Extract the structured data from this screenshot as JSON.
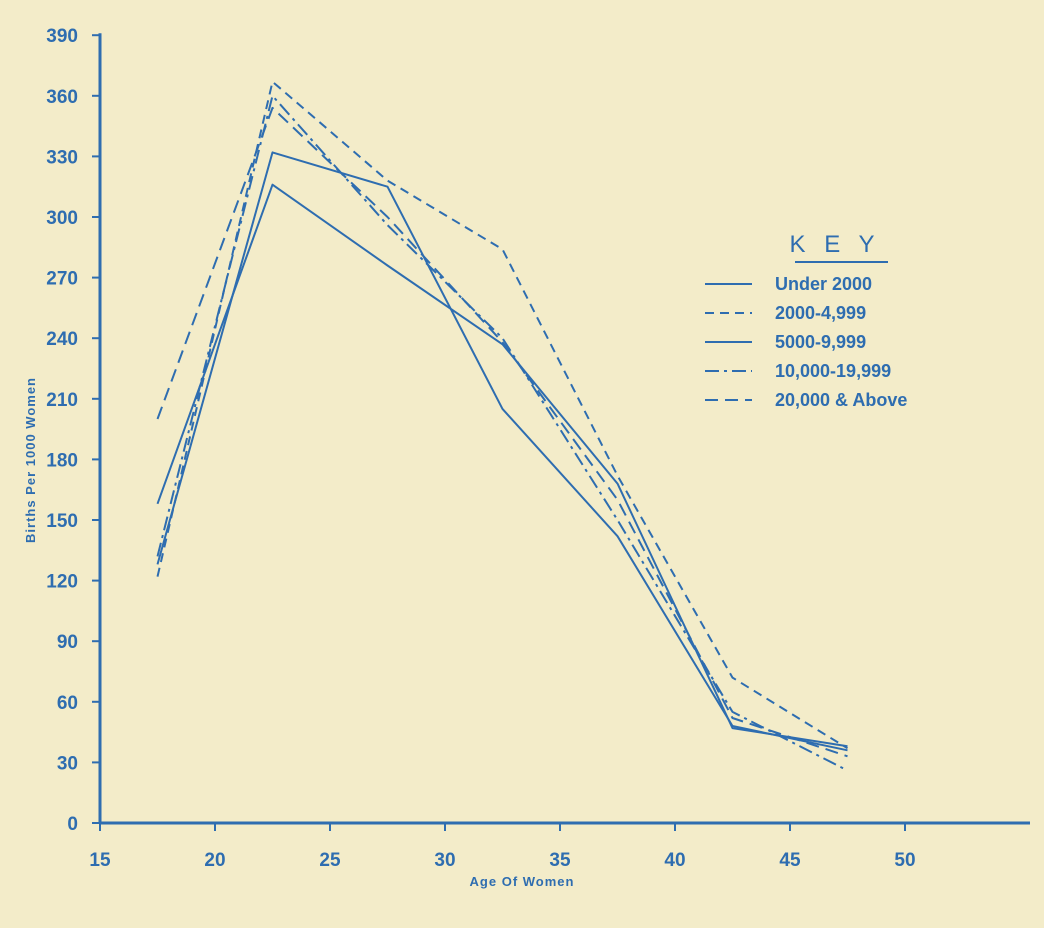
{
  "chart_data": {
    "type": "line",
    "xlabel": "Age Of Women",
    "ylabel": "Births Per 1000 Women",
    "xlim": [
      15,
      52
    ],
    "ylim": [
      0,
      390
    ],
    "x_ticks": [
      "15",
      "20",
      "25",
      "30",
      "35",
      "40",
      "45",
      "50"
    ],
    "y_ticks": [
      "0",
      "30",
      "60",
      "90",
      "120",
      "150",
      "180",
      "210",
      "240",
      "270",
      "300",
      "330",
      "360",
      "390"
    ],
    "x": [
      17.5,
      22.5,
      27.5,
      32.5,
      37.5,
      42.5,
      47.5
    ],
    "series": [
      {
        "name": "Under 2000",
        "values": [
          128,
          332,
          315,
          205,
          142,
          48,
          36
        ]
      },
      {
        "name": "2000-4,999",
        "values": [
          122,
          367,
          318,
          284,
          172,
          72,
          37
        ]
      },
      {
        "name": "5000-9,999",
        "values": [
          158,
          316,
          276,
          237,
          168,
          47,
          38
        ]
      },
      {
        "name": "10,000-19,999",
        "values": [
          132,
          360,
          296,
          240,
          150,
          55,
          26
        ]
      },
      {
        "name": "20,000 & Above",
        "values": [
          200,
          354,
          300,
          238,
          160,
          52,
          33
        ]
      }
    ],
    "legend_title": "K E Y",
    "legend_position": "upper-right",
    "grid": false
  },
  "colors": {
    "ink": "#2e6db0",
    "paper": "#f3ecc9"
  }
}
